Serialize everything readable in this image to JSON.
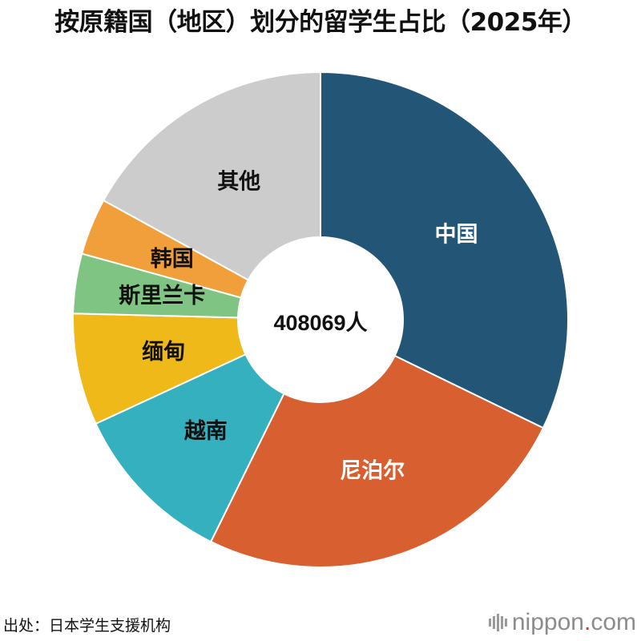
{
  "chart_data": {
    "type": "pie",
    "title": "按原籍国（地区）划分的留学生占比（2025年）",
    "center_label": "408069人",
    "slices": [
      {
        "label": "中国",
        "percent": 32.2,
        "color": "#235676",
        "label_color": "#ffffff"
      },
      {
        "label": "尼泊尔",
        "percent": 25.1,
        "color": "#d85f30",
        "label_color": "#ffffff"
      },
      {
        "label": "越南",
        "percent": 10.8,
        "color": "#34b0bf",
        "label_color": "#111111"
      },
      {
        "label": "缅甸",
        "percent": 7.3,
        "color": "#f0b91a",
        "label_color": "#111111"
      },
      {
        "label": "斯里兰卡",
        "percent": 3.9,
        "color": "#80c483",
        "label_color": "#111111"
      },
      {
        "label": "韩国",
        "percent": 3.7,
        "color": "#f09f3b",
        "label_color": "#111111"
      },
      {
        "label": "其他",
        "percent": 17.0,
        "color": "#cccccc",
        "label_color": "#111111"
      }
    ]
  },
  "source": "出处：日本学生支援机构",
  "brand": {
    "name": "nippon",
    "dot": ".",
    "tld": "com"
  }
}
